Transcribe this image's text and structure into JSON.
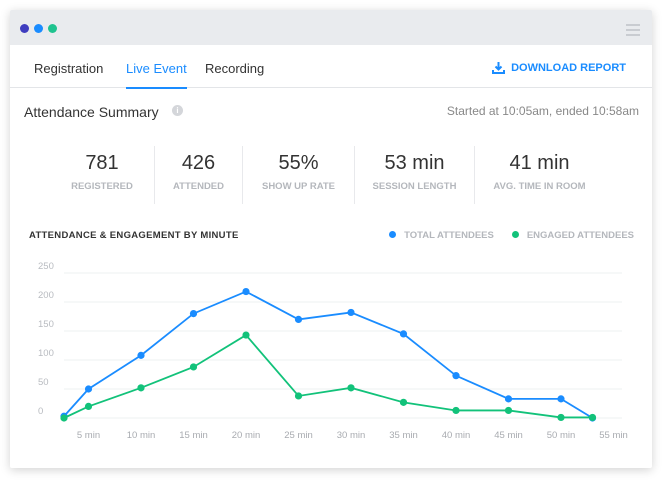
{
  "window": {
    "dots": [
      "#3f3dbf",
      "#1a8cff",
      "#1fc38f"
    ]
  },
  "tabs": [
    {
      "label": "Registration"
    },
    {
      "label": "Live Event"
    },
    {
      "label": "Recording"
    }
  ],
  "download_label": "DOWNLOAD REPORT",
  "summary": {
    "title": "Attendance Summary",
    "info_glyph": "i",
    "started": "Started at 10:05am, ended 10:58am"
  },
  "stats": [
    {
      "value": "781",
      "label": "REGISTERED"
    },
    {
      "value": "426",
      "label": "ATTENDED"
    },
    {
      "value": "55%",
      "label": "SHOW UP RATE"
    },
    {
      "value": "53 min",
      "label": "SESSION LENGTH"
    },
    {
      "value": "41 min",
      "label": "AVG. TIME IN ROOM"
    }
  ],
  "chart_data": {
    "type": "line",
    "title": "ATTENDANCE & ENGAGEMENT BY MINUTE",
    "x": [
      0,
      5,
      10,
      15,
      20,
      25,
      30,
      35,
      40,
      45,
      50,
      53
    ],
    "xticks": [
      "5 min",
      "10 min",
      "15 min",
      "20 min",
      "25 min",
      "30 min",
      "35 min",
      "40 min",
      "45 min",
      "50 min",
      "55 min"
    ],
    "xtick_values": [
      5,
      10,
      15,
      20,
      25,
      30,
      35,
      40,
      45,
      50,
      55
    ],
    "yticks": [
      "0",
      "50",
      "100",
      "150",
      "200",
      "250"
    ],
    "ylim": [
      0,
      250
    ],
    "grid": true,
    "legend_position": "top-right",
    "series": [
      {
        "name": "TOTAL ATTENDEES",
        "color": "#1a8cff",
        "values": [
          3,
          50,
          108,
          180,
          218,
          170,
          182,
          145,
          73,
          33,
          33,
          0
        ]
      },
      {
        "name": "ENGAGED ATTENDEES",
        "color": "#12c27a",
        "values": [
          0,
          20,
          52,
          88,
          143,
          38,
          52,
          27,
          13,
          13,
          1,
          1
        ]
      }
    ]
  }
}
